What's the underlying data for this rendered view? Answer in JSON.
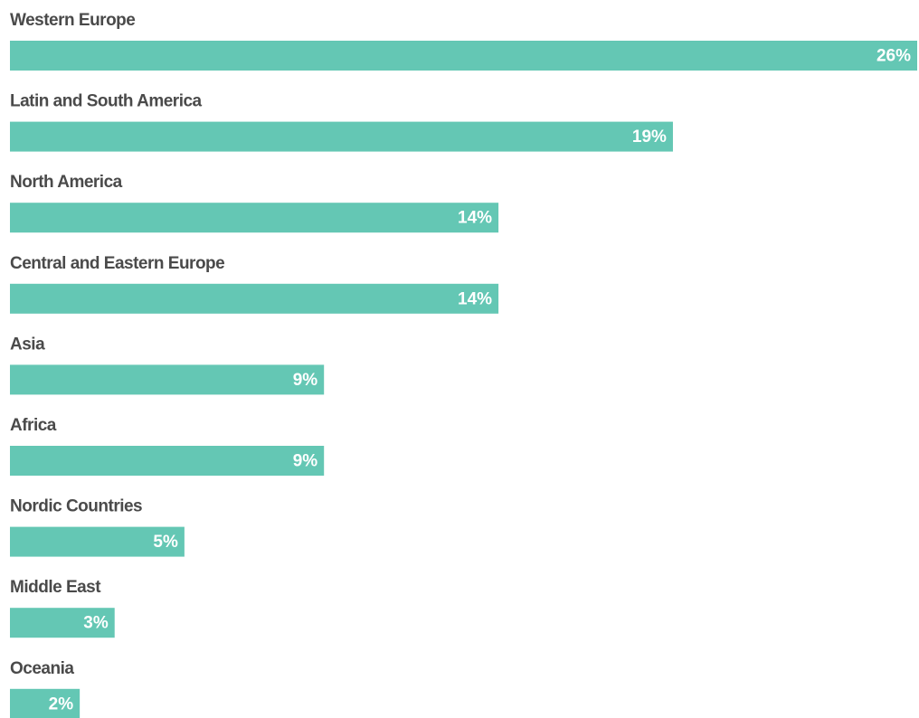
{
  "chart_data": {
    "type": "bar",
    "orientation": "horizontal",
    "categories": [
      "Western Europe",
      "Latin and South America",
      "North America",
      "Central and Eastern Europe",
      "Asia",
      "Africa",
      "Nordic Countries",
      "Middle East",
      "Oceania"
    ],
    "values": [
      26,
      19,
      14,
      14,
      9,
      9,
      5,
      3,
      2
    ],
    "value_labels": [
      "26%",
      "19%",
      "14%",
      "14%",
      "9%",
      "9%",
      "5%",
      "3%",
      "2%"
    ],
    "color": "#64c7b4",
    "xlim": [
      0,
      26
    ]
  }
}
